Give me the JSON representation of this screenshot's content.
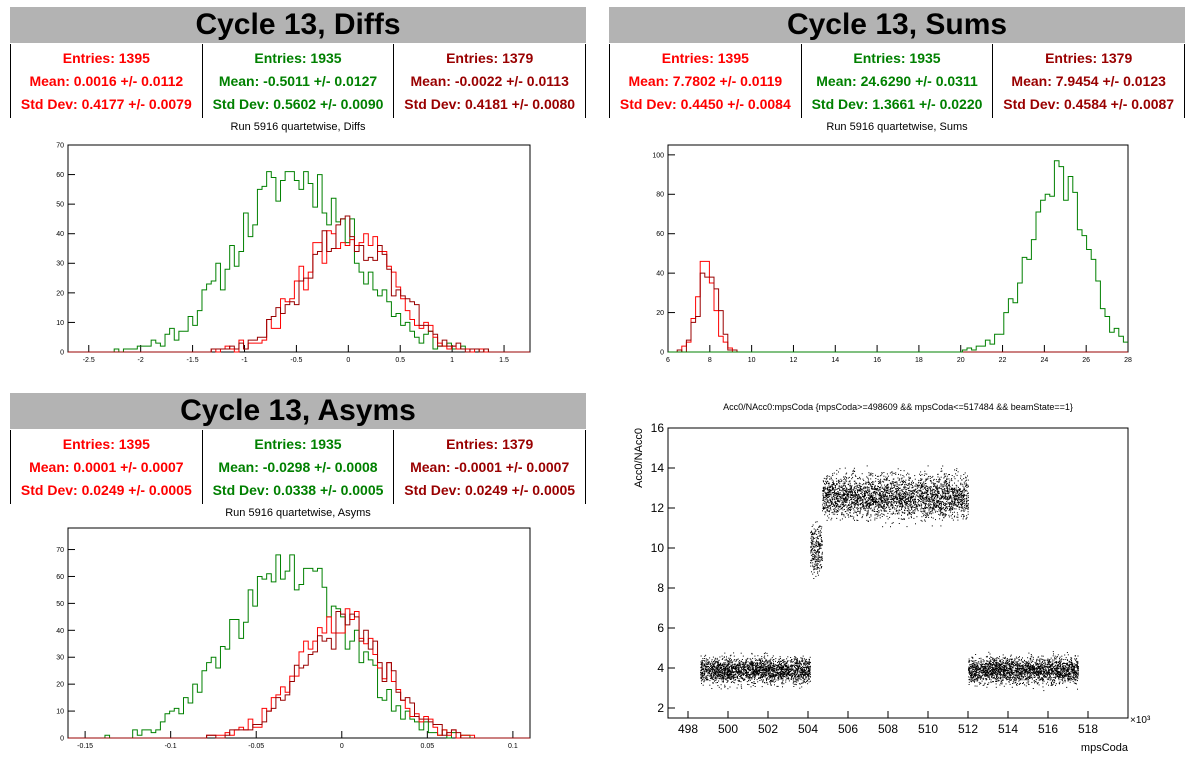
{
  "colors": {
    "red": "#ff0000",
    "green": "#008000",
    "darkred": "#990000",
    "header": "#b3b3b3"
  },
  "panels": {
    "diffs": {
      "header": "Cycle 13, Diffs",
      "plot_title": "Run 5916 quartetwise, Diffs",
      "stats": [
        {
          "entries": "Entries: 1395",
          "mean": "Mean: 0.0016 +/- 0.0112",
          "std": "Std Dev: 0.4177 +/- 0.0079"
        },
        {
          "entries": "Entries: 1935",
          "mean": "Mean: -0.5011 +/- 0.0127",
          "std": "Std Dev: 0.5602 +/- 0.0090"
        },
        {
          "entries": "Entries: 1379",
          "mean": "Mean: -0.0022 +/- 0.0113",
          "std": "Std Dev: 0.4181 +/- 0.0080"
        }
      ]
    },
    "sums": {
      "header": "Cycle 13, Sums",
      "plot_title": "Run 5916 quartetwise, Sums",
      "stats": [
        {
          "entries": "Entries: 1395",
          "mean": "Mean: 7.7802 +/- 0.0119",
          "std": "Std Dev: 0.4450 +/- 0.0084"
        },
        {
          "entries": "Entries: 1935",
          "mean": "Mean: 24.6290 +/- 0.0311",
          "std": "Std Dev: 1.3661 +/- 0.0220"
        },
        {
          "entries": "Entries: 1379",
          "mean": "Mean: 7.9454 +/- 0.0123",
          "std": "Std Dev: 0.4584 +/- 0.0087"
        }
      ]
    },
    "asyms": {
      "header": "Cycle 13, Asyms",
      "plot_title": "Run 5916 quartetwise, Asyms",
      "stats": [
        {
          "entries": "Entries: 1395",
          "mean": "Mean: 0.0001 +/- 0.0007",
          "std": "Std Dev: 0.0249 +/- 0.0005"
        },
        {
          "entries": "Entries: 1935",
          "mean": "Mean: -0.0298 +/- 0.0008",
          "std": "Std Dev: 0.0338 +/- 0.0005"
        },
        {
          "entries": "Entries: 1379",
          "mean": "Mean: -0.0001 +/- 0.0007",
          "std": "Std Dev: 0.0249 +/- 0.0005"
        }
      ]
    },
    "scatter": {
      "plot_title": "Acc0/NAcc0:mpsCoda {mpsCoda>=498609 && mpsCoda<=517484 && beamState==1}"
    }
  },
  "chart_data": [
    {
      "type": "histogram",
      "id": "diffs",
      "xlim": [
        -2.7,
        1.75
      ],
      "ylim": [
        0,
        70
      ],
      "xticks": [
        -2.5,
        -2,
        -1.5,
        -1,
        -0.5,
        0,
        0.5,
        1,
        1.5
      ],
      "yticks": [
        0,
        10,
        20,
        30,
        40,
        50,
        60,
        70
      ],
      "series": [
        {
          "color": "green",
          "entries": 1935,
          "mean": -0.5011,
          "std": 0.5602,
          "peak": 68
        },
        {
          "color": "red",
          "entries": 1395,
          "mean": 0.0016,
          "std": 0.4177,
          "peak": 49
        },
        {
          "color": "darkred",
          "entries": 1379,
          "mean": -0.0022,
          "std": 0.4181,
          "peak": 47
        }
      ]
    },
    {
      "type": "histogram",
      "id": "sums",
      "xlim": [
        6,
        28
      ],
      "ylim": [
        0,
        105
      ],
      "xticks": [
        6,
        8,
        10,
        12,
        14,
        16,
        18,
        20,
        22,
        24,
        26,
        28
      ],
      "yticks": [
        0,
        20,
        40,
        60,
        80,
        100
      ],
      "series": [
        {
          "color": "red",
          "entries": 1395,
          "mean": 7.7802,
          "std": 0.445,
          "peak": 47
        },
        {
          "color": "darkred",
          "entries": 1379,
          "mean": 7.9454,
          "std": 0.4584,
          "peak": 49
        },
        {
          "color": "green",
          "entries": 1935,
          "mean": 24.629,
          "std": 1.3661,
          "peak": 100
        }
      ]
    },
    {
      "type": "histogram",
      "id": "asyms",
      "xlim": [
        -0.16,
        0.11
      ],
      "ylim": [
        0,
        78
      ],
      "xticks": [
        -0.15,
        -0.1,
        -0.05,
        0,
        0.05,
        0.1
      ],
      "yticks": [
        0,
        10,
        20,
        30,
        40,
        50,
        60,
        70
      ],
      "series": [
        {
          "color": "green",
          "entries": 1935,
          "mean": -0.0298,
          "std": 0.0338,
          "peak": 73
        },
        {
          "color": "red",
          "entries": 1395,
          "mean": 0.0001,
          "std": 0.0249,
          "peak": 49
        },
        {
          "color": "darkred",
          "entries": 1379,
          "mean": -0.0001,
          "std": 0.0249,
          "peak": 47
        }
      ]
    },
    {
      "type": "scatter",
      "id": "scatter",
      "xlabel": "mpsCoda",
      "ylabel": "Acc0/NAcc0",
      "xscale_label": "×10³",
      "xlim": [
        497,
        520
      ],
      "ylim": [
        1.5,
        16
      ],
      "xticks": [
        498,
        500,
        502,
        504,
        506,
        508,
        510,
        512,
        514,
        516,
        518
      ],
      "yticks": [
        2,
        4,
        6,
        8,
        10,
        12,
        14,
        16
      ],
      "segments": [
        {
          "x": [
            498.6,
            504.1
          ],
          "y_center": 3.9,
          "y_spread": 0.45
        },
        {
          "x": [
            504.1,
            504.7
          ],
          "y_center": 10.0,
          "y_spread": 0.8
        },
        {
          "x": [
            504.7,
            512.0
          ],
          "y_center": 12.6,
          "y_spread": 0.75
        },
        {
          "x": [
            512.0,
            517.5
          ],
          "y_center": 3.9,
          "y_spread": 0.45
        }
      ]
    }
  ]
}
